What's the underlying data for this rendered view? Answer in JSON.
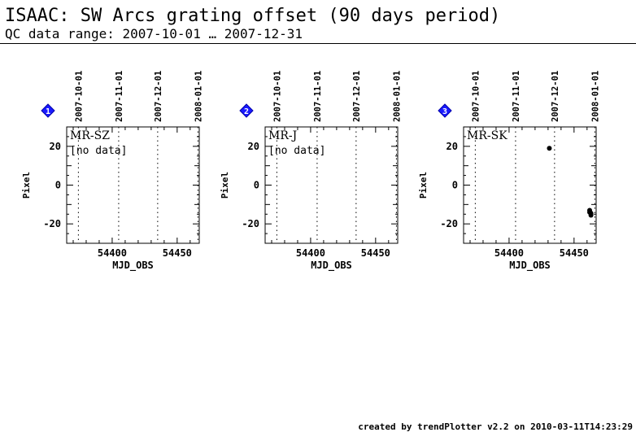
{
  "header": {
    "title": "ISAAC: SW Arcs grating offset (90 days period)",
    "subtitle": "QC data range: 2007-10-01 … 2007-12-31"
  },
  "footer": {
    "text": "created by trendPlotter v2.2 on 2010-03-11T14:23:29"
  },
  "colors": {
    "marker": "#1a1aff",
    "points": "#000000"
  },
  "chart_data": [
    {
      "type": "scatter",
      "panel_number": "1",
      "panel_label": "MR-SZ",
      "note": "[no data]",
      "xlabel": "MJD_OBS",
      "ylabel": "Pixel",
      "xlim": [
        54365,
        54467
      ],
      "ylim": [
        -30,
        30
      ],
      "x_ticks": [
        54400,
        54450
      ],
      "y_ticks": [
        20,
        0,
        -20
      ],
      "date_ticks": [
        {
          "label": "2007-10-01",
          "mjd": 54374
        },
        {
          "label": "2007-11-01",
          "mjd": 54405
        },
        {
          "label": "2007-12-01",
          "mjd": 54435
        },
        {
          "label": "2008-01-01",
          "mjd": 54466
        }
      ],
      "x": [],
      "y": []
    },
    {
      "type": "scatter",
      "panel_number": "2",
      "panel_label": "MR-J",
      "note": "[no data]",
      "xlabel": "MJD_OBS",
      "ylabel": "Pixel",
      "xlim": [
        54365,
        54467
      ],
      "ylim": [
        -30,
        30
      ],
      "x_ticks": [
        54400,
        54450
      ],
      "y_ticks": [
        20,
        0,
        -20
      ],
      "date_ticks": [
        {
          "label": "2007-10-01",
          "mjd": 54374
        },
        {
          "label": "2007-11-01",
          "mjd": 54405
        },
        {
          "label": "2007-12-01",
          "mjd": 54435
        },
        {
          "label": "2008-01-01",
          "mjd": 54466
        }
      ],
      "x": [],
      "y": []
    },
    {
      "type": "scatter",
      "panel_number": "3",
      "panel_label": "MR-SK",
      "note": "",
      "xlabel": "MJD_OBS",
      "ylabel": "Pixel",
      "xlim": [
        54365,
        54467
      ],
      "ylim": [
        -30,
        30
      ],
      "x_ticks": [
        54400,
        54450
      ],
      "y_ticks": [
        20,
        0,
        -20
      ],
      "date_ticks": [
        {
          "label": "2007-10-01",
          "mjd": 54374
        },
        {
          "label": "2007-11-01",
          "mjd": 54405
        },
        {
          "label": "2007-12-01",
          "mjd": 54435
        },
        {
          "label": "2008-01-01",
          "mjd": 54466
        }
      ],
      "x": [
        54431,
        54462,
        54462,
        54463,
        54463
      ],
      "y": [
        19,
        -13,
        -14,
        -14.5,
        -15.5
      ]
    }
  ]
}
